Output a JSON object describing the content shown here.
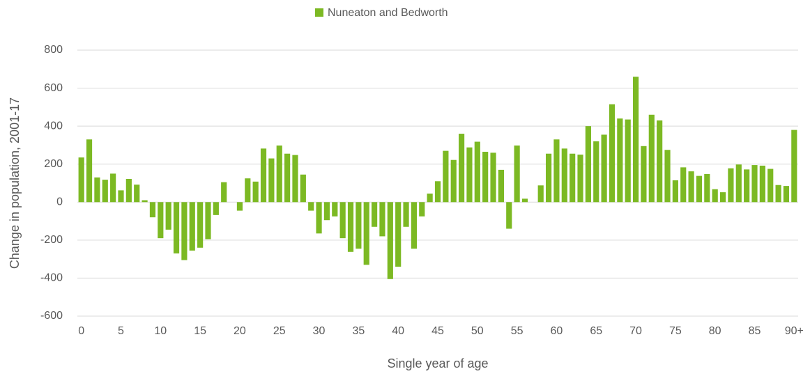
{
  "chart_data": {
    "type": "bar",
    "series": [
      {
        "name": "Nuneaton and Bedworth",
        "color": "#7cb923",
        "values": [
          235,
          330,
          130,
          118,
          150,
          62,
          122,
          92,
          10,
          -80,
          -190,
          -145,
          -270,
          -305,
          -255,
          -240,
          -195,
          -68,
          105,
          0,
          -45,
          125,
          108,
          282,
          230,
          298,
          255,
          248,
          145,
          -45,
          -165,
          -95,
          -75,
          -190,
          -262,
          -245,
          -330,
          -130,
          -180,
          -405,
          -340,
          -130,
          -245,
          -75,
          45,
          110,
          270,
          222,
          360,
          288,
          318,
          265,
          260,
          170,
          -140,
          298,
          18,
          0,
          88,
          255,
          330,
          282,
          255,
          250,
          400,
          320,
          355,
          515,
          440,
          435,
          660,
          295,
          460,
          430,
          275,
          115,
          183,
          162,
          138,
          148,
          68,
          52,
          178,
          198,
          172,
          195,
          192,
          175,
          90,
          85,
          380
        ]
      }
    ],
    "categories": [
      "0",
      null,
      null,
      null,
      null,
      "5",
      null,
      null,
      null,
      null,
      "10",
      null,
      null,
      null,
      null,
      "15",
      null,
      null,
      null,
      null,
      "20",
      null,
      null,
      null,
      null,
      "25",
      null,
      null,
      null,
      null,
      "30",
      null,
      null,
      null,
      null,
      "35",
      null,
      null,
      null,
      null,
      "40",
      null,
      null,
      null,
      null,
      "45",
      null,
      null,
      null,
      null,
      "50",
      null,
      null,
      null,
      null,
      "55",
      null,
      null,
      null,
      null,
      "60",
      null,
      null,
      null,
      null,
      "65",
      null,
      null,
      null,
      null,
      "70",
      null,
      null,
      null,
      null,
      "75",
      null,
      null,
      null,
      null,
      "80",
      null,
      null,
      null,
      null,
      "85",
      null,
      null,
      null,
      null,
      "90+"
    ],
    "x_label": "Single year of age",
    "y_label": "Change in population, 2001-17",
    "ylim": [
      -600,
      800
    ],
    "yticks": [
      -600,
      -400,
      -200,
      0,
      200,
      400,
      600,
      800
    ],
    "grid": true,
    "legend": "top"
  }
}
